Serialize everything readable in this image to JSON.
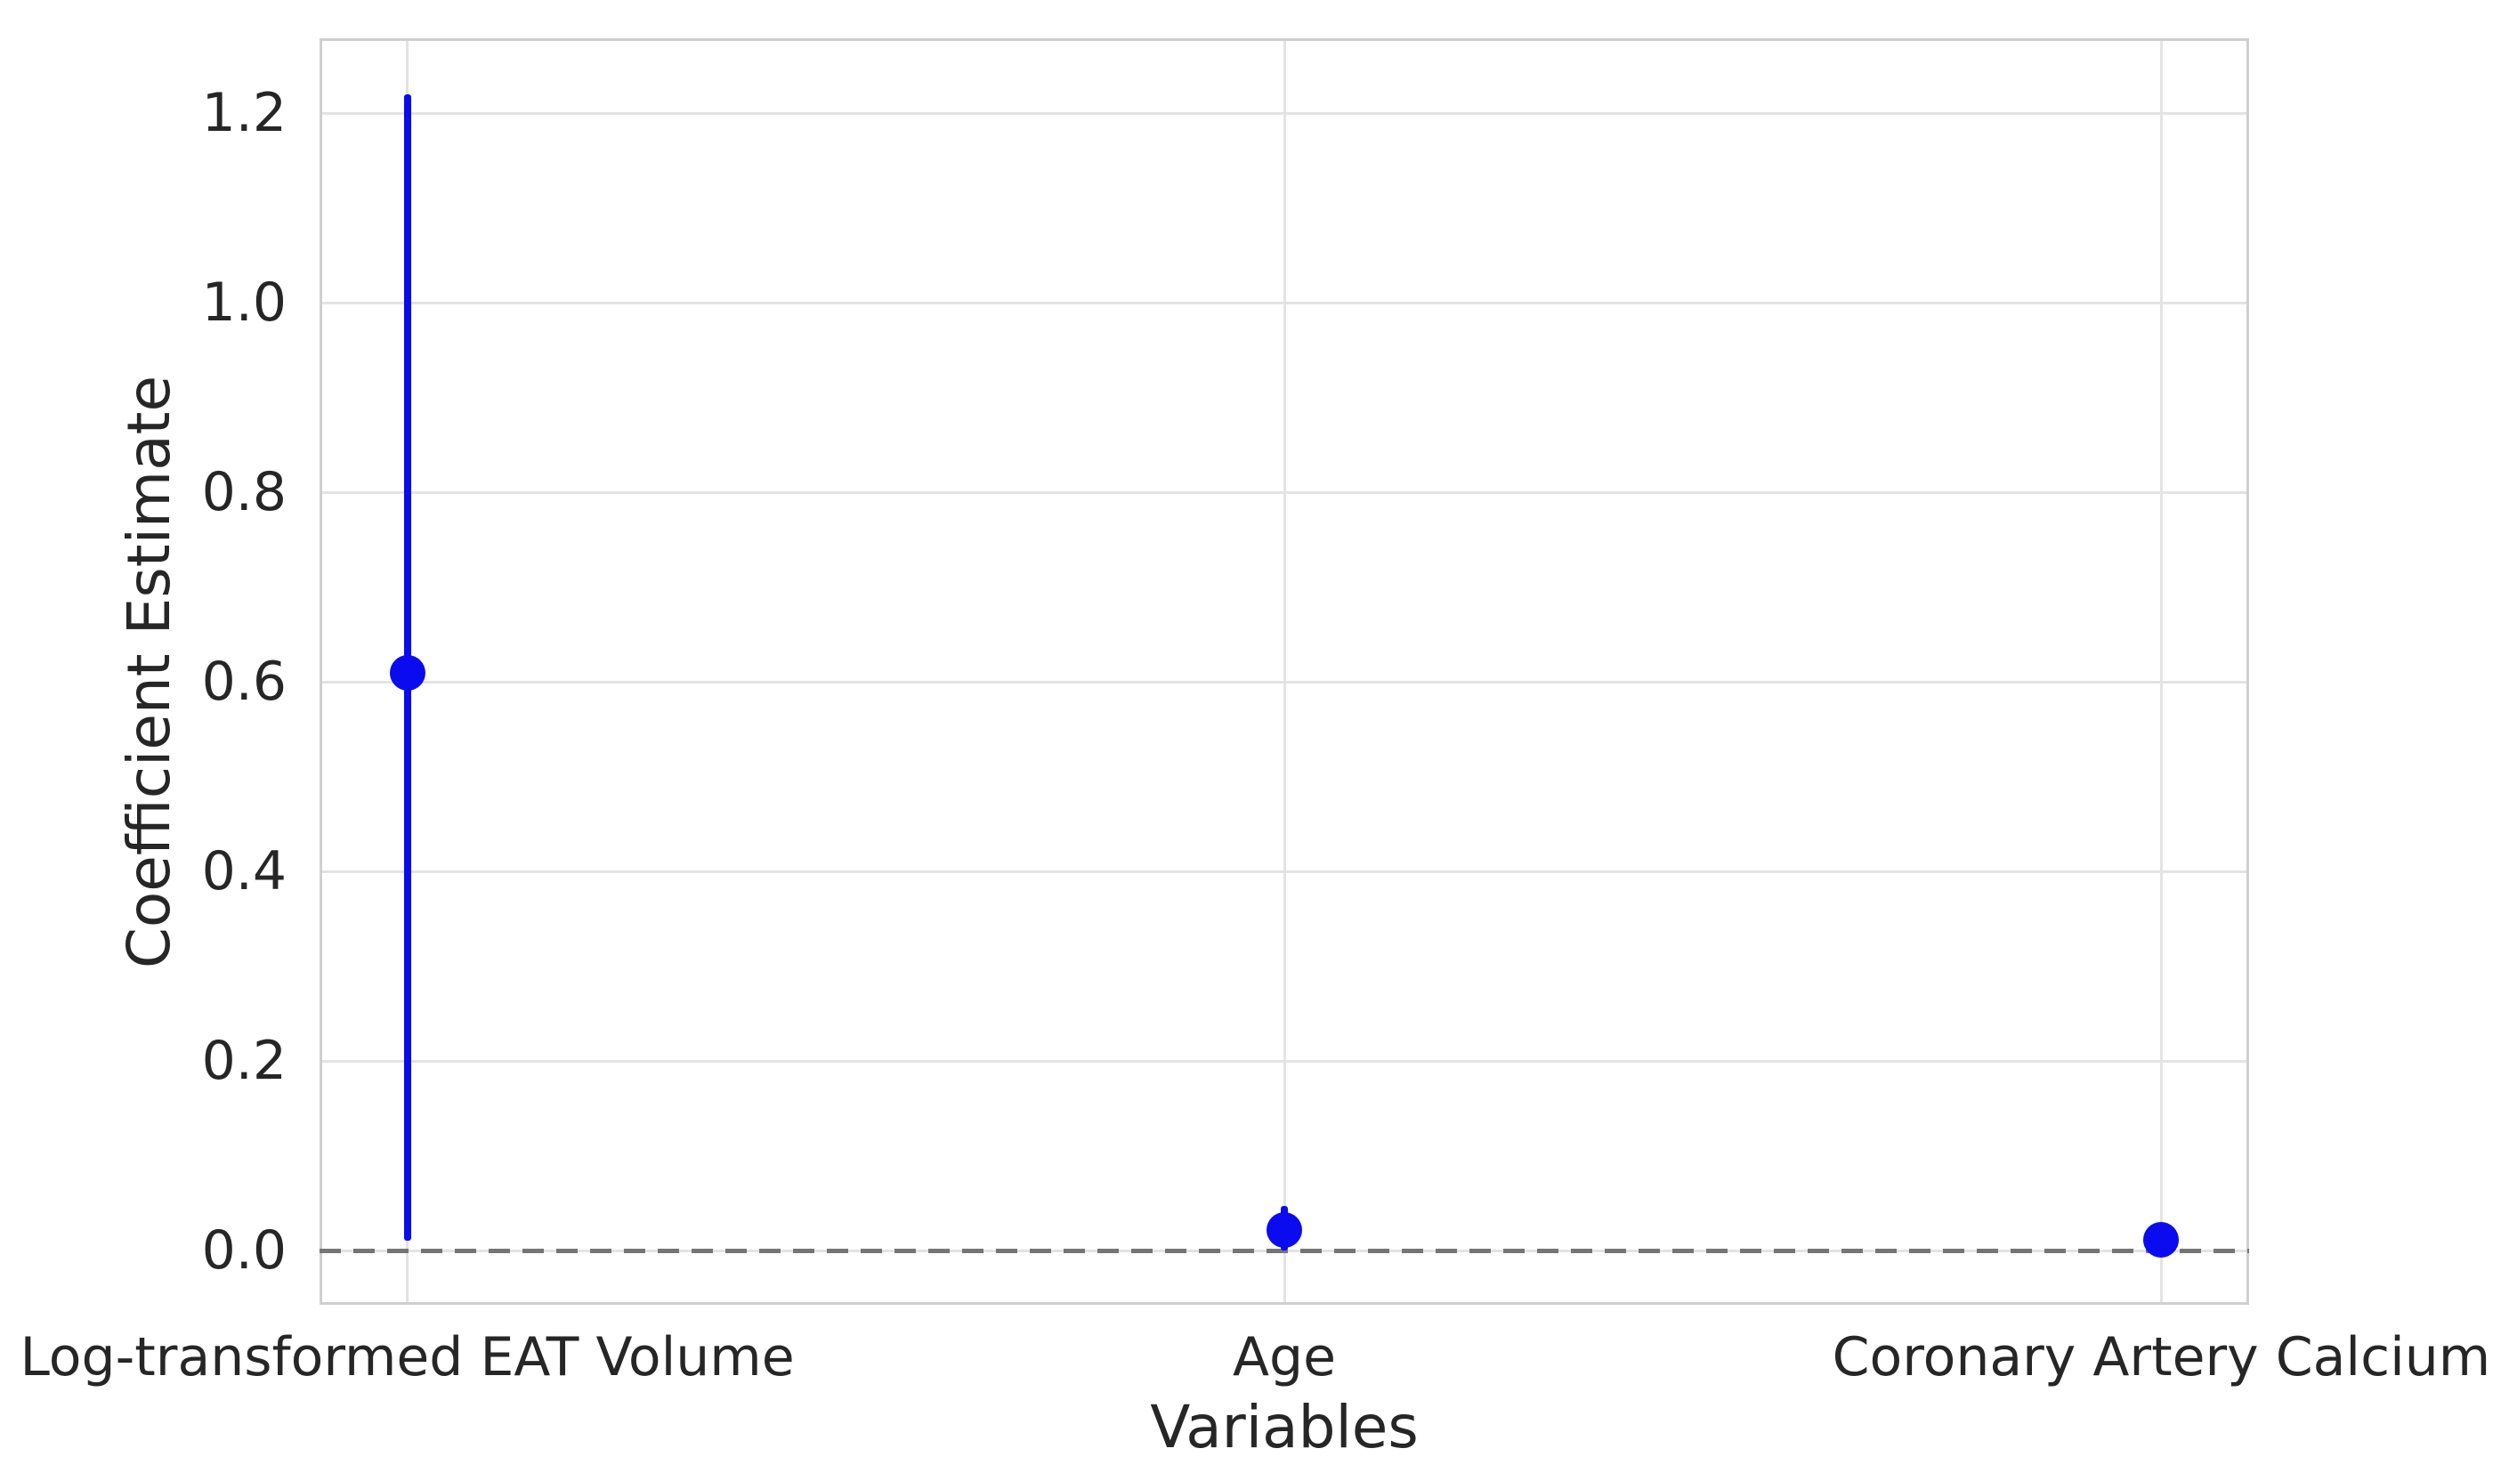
{
  "figure": {
    "colors": {
      "background": "#ffffff",
      "marker_blue": "#0b0bef",
      "grid": "#e3e3e3",
      "spine": "#cfcfcf",
      "zero_line": "#757575",
      "text": "#262626"
    }
  },
  "chart_data": {
    "type": "scatter",
    "subtype": "coefficient-plot-with-error-bars",
    "title": "",
    "xlabel": "Variables",
    "ylabel": "Coefficient Estimate",
    "categories": [
      "Log-transformed EAT Volume",
      "Age",
      "Coronary Artery Calcium"
    ],
    "series": [
      {
        "name": "Coefficient Estimate",
        "marker": "circle",
        "marker_color": "#0b0bef",
        "points": [
          {
            "category": "Log-transformed EAT Volume",
            "estimate": 0.61,
            "ci_low": 0.011,
            "ci_high": 1.22
          },
          {
            "category": "Age",
            "estimate": 0.022,
            "ci_low": 0.0,
            "ci_high": 0.047
          },
          {
            "category": "Coronary Artery Calcium",
            "estimate": 0.012,
            "ci_low": 0.005,
            "ci_high": 0.02
          }
        ]
      }
    ],
    "yticks": [
      0.0,
      0.2,
      0.4,
      0.6,
      0.8,
      1.0,
      1.2
    ],
    "ytick_labels": [
      "0.0",
      "0.2",
      "0.4",
      "0.6",
      "0.8",
      "1.0",
      "1.2"
    ],
    "ylim": [
      -0.057,
      1.279
    ],
    "xlim": [
      -0.1,
      2.1
    ],
    "grid": true,
    "legend": false,
    "reference_line": {
      "y": 0.0,
      "style": "dashed",
      "color": "#757575"
    }
  }
}
